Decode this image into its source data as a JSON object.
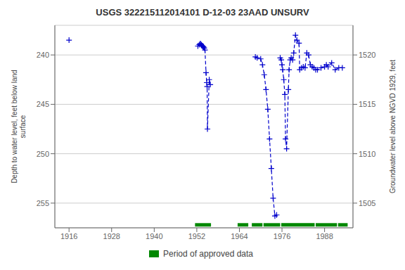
{
  "chart_data": {
    "type": "line",
    "title": "USGS 322215112014101 D-12-03 23AAD  UNSURV",
    "ylabel": "Depth to water level, feet below land\nsurface",
    "y2label": "Groundwater level above NGVD 1929, feet",
    "xlim": [
      1912,
      1996
    ],
    "ylim": [
      257.5,
      237.0
    ],
    "y2lim": [
      1502.5,
      1523.0
    ],
    "xticks": [
      1916,
      1928,
      1940,
      1952,
      1964,
      1976,
      1988
    ],
    "yticks": [
      240,
      245,
      250,
      255
    ],
    "y2ticks": [
      1520,
      1515,
      1510,
      1505
    ],
    "grid": true,
    "legend": "bottom",
    "series": [
      {
        "type": "line",
        "color": "#0000cc",
        "line_style": "dashed",
        "marker": "plus",
        "x": [
          1952.3,
          1952.7,
          1953.0,
          1953.15,
          1953.3,
          1953.45,
          1953.6,
          1953.75,
          1953.9,
          1954.1,
          1954.3,
          1954.6,
          1954.8,
          1954.9,
          1955.0,
          1955.5,
          1955.8
        ],
        "values": [
          239.1,
          238.95,
          238.85,
          238.9,
          239.0,
          239.05,
          239.1,
          239.15,
          239.2,
          239.3,
          239.5,
          241.8,
          242.8,
          243.2,
          247.5,
          242.5,
          243.0
        ]
      },
      {
        "type": "line",
        "color": "#0000cc",
        "line_style": "dashed",
        "marker": "plus",
        "x": [
          1968.5,
          1969.0,
          1970.0,
          1970.5,
          1971.0,
          1971.5,
          1972.0,
          1972.5,
          1973.0,
          1973.5,
          1974.0,
          1974.5
        ],
        "values": [
          240.2,
          240.3,
          240.4,
          241.0,
          242.0,
          243.5,
          245.5,
          248.5,
          251.5,
          254.5,
          256.3,
          256.2
        ]
      },
      {
        "type": "line",
        "color": "#0000cc",
        "line_style": "dashed",
        "marker": "plus",
        "x": [
          1975.5,
          1975.8,
          1976.0,
          1976.2,
          1976.5,
          1976.8,
          1977.0,
          1977.3,
          1977.8,
          1978.0,
          1978.3,
          1978.6,
          1979.0,
          1979.3,
          1979.8,
          1980.2,
          1980.8,
          1981.0,
          1981.5,
          1982.0,
          1982.5,
          1983.0,
          1983.5,
          1984.0,
          1984.5,
          1985.0,
          1985.5,
          1986.0,
          1987.0,
          1988.0,
          1988.5,
          1989.0,
          1990.0,
          1991.0,
          1992.0,
          1993.0
        ],
        "values": [
          240.3,
          240.5,
          241.0,
          241.5,
          242.5,
          244.0,
          248.5,
          249.5,
          243.5,
          241.5,
          240.5,
          240.3,
          240.5,
          239.8,
          238.0,
          238.5,
          238.8,
          241.5,
          241.3,
          241.2,
          241.3,
          239.8,
          240.0,
          241.0,
          241.2,
          241.3,
          241.5,
          241.5,
          241.3,
          241.2,
          241.0,
          241.2,
          240.8,
          241.5,
          241.3,
          241.3
        ]
      },
      {
        "type": "scatter",
        "color": "#0000cc",
        "marker": "plus",
        "x": [
          1916.0
        ],
        "values": [
          238.5
        ]
      }
    ],
    "approved": {
      "name": "Period of approved data",
      "color": "#008800",
      "ranges": [
        [
          1951.5,
          1956.0
        ],
        [
          1963.5,
          1966.5
        ],
        [
          1967.5,
          1970.5
        ],
        [
          1970.8,
          1975.5
        ],
        [
          1975.8,
          1985.2
        ],
        [
          1985.5,
          1991.5
        ],
        [
          1991.8,
          1994.5
        ]
      ],
      "y": 257.2,
      "height": 0.35
    }
  }
}
